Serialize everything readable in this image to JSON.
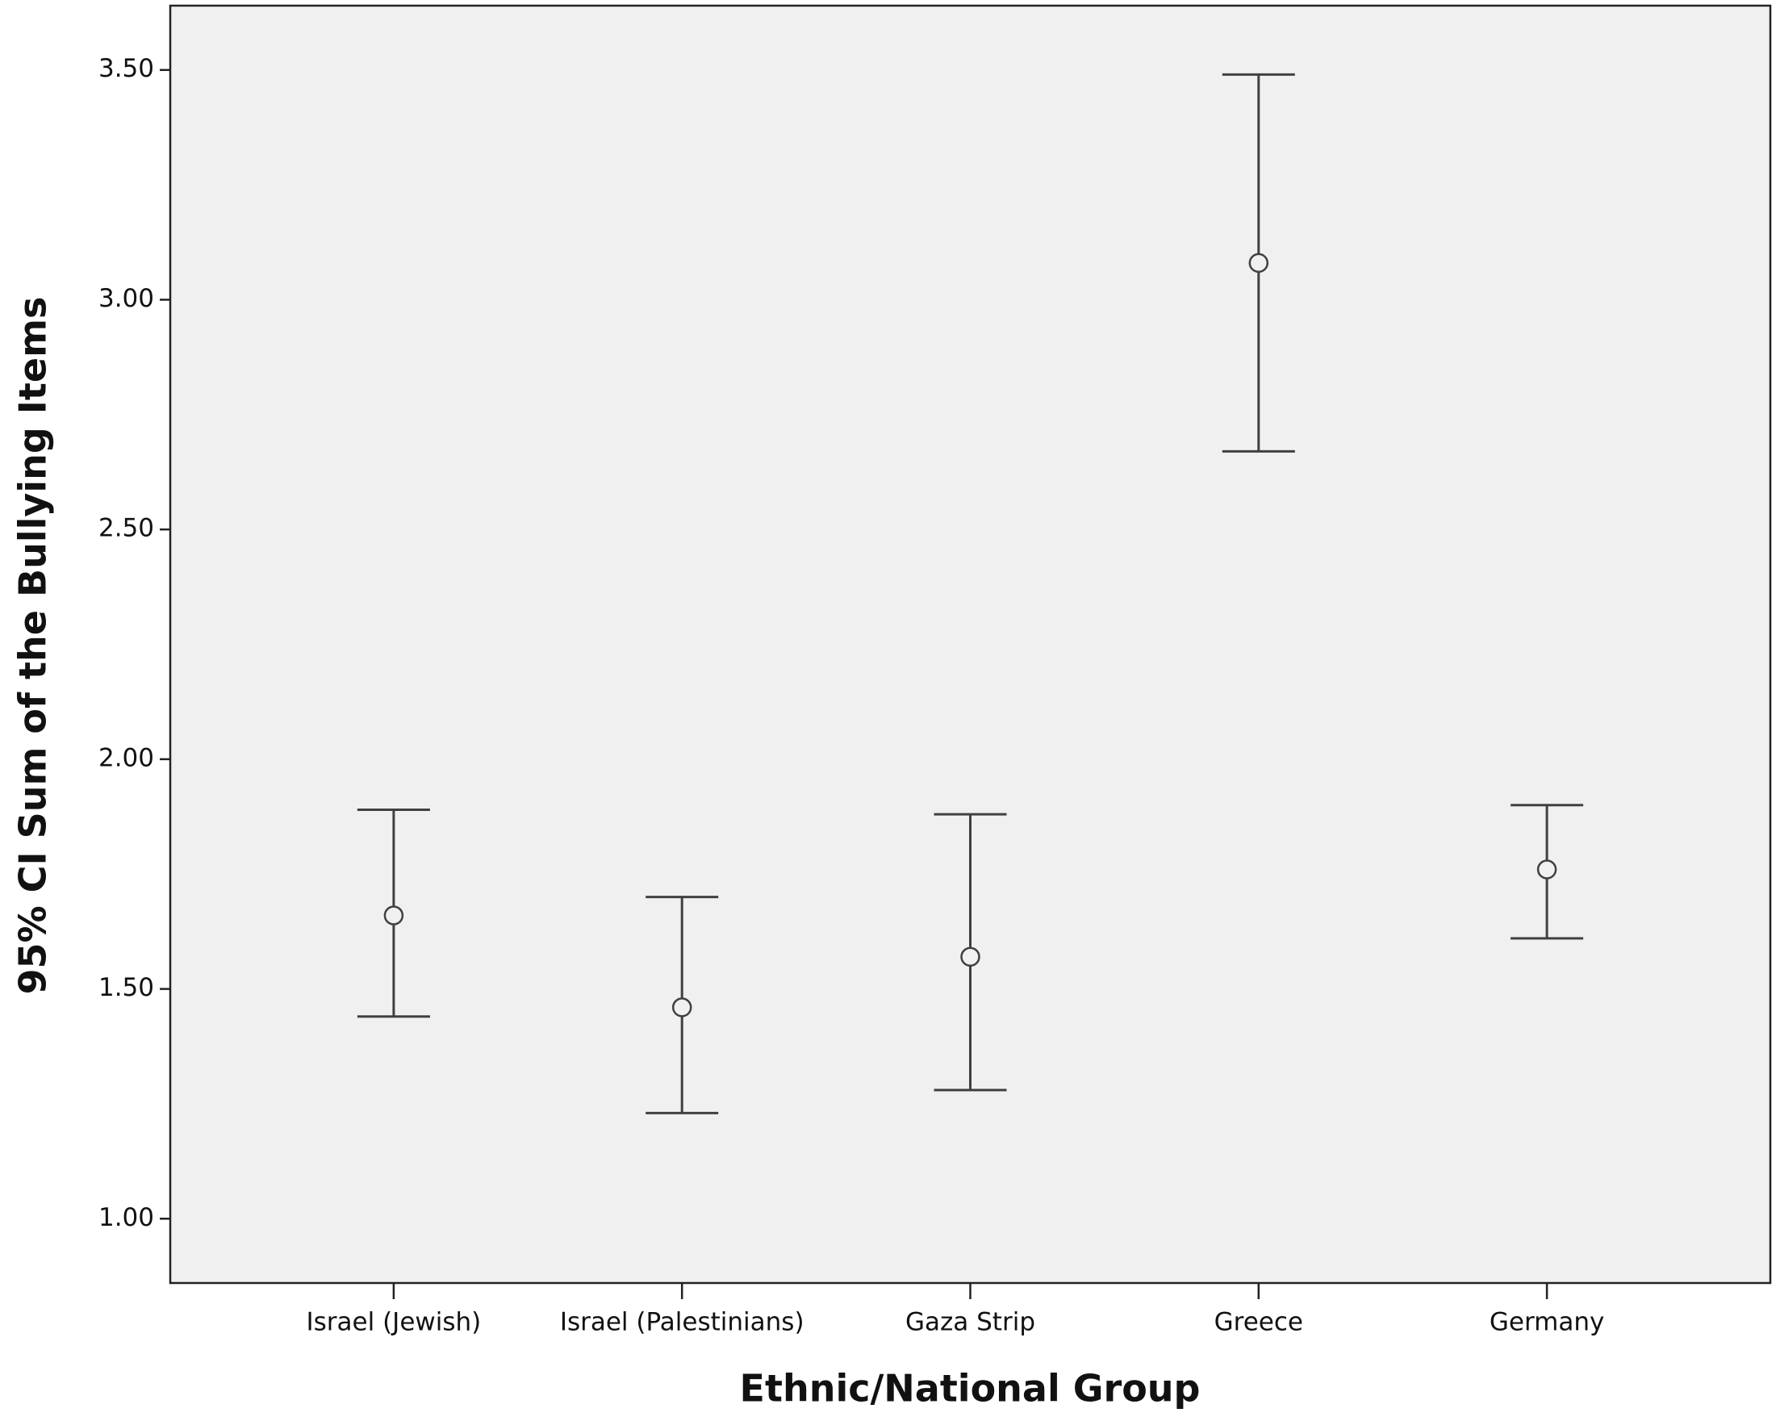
{
  "chart_data": {
    "type": "errorbar",
    "x_label": "Ethnic/National Group",
    "y_label": "95% CI Sum of the Bullying Items",
    "categories": [
      "Israel (Jewish)",
      "Israel (Palestinians)",
      "Gaza Strip",
      "Greece",
      "Germany"
    ],
    "series": [
      {
        "color": "#404040",
        "values": [
          1.66,
          1.46,
          1.57,
          3.08,
          1.76
        ],
        "lower": [
          1.44,
          1.23,
          1.28,
          2.67,
          1.61
        ],
        "upper": [
          1.89,
          1.7,
          1.88,
          3.49,
          1.9
        ]
      }
    ],
    "ylim": [
      0.86,
      3.64
    ],
    "yticks": [
      {
        "value": 1.0,
        "label": "1.00"
      },
      {
        "value": 1.5,
        "label": "1.50"
      },
      {
        "value": 2.0,
        "label": "2.00"
      },
      {
        "value": 2.5,
        "label": "2.50"
      },
      {
        "value": 3.0,
        "label": "3.00"
      },
      {
        "value": 3.5,
        "label": "3.50"
      }
    ],
    "background": "#f0f0f0"
  }
}
